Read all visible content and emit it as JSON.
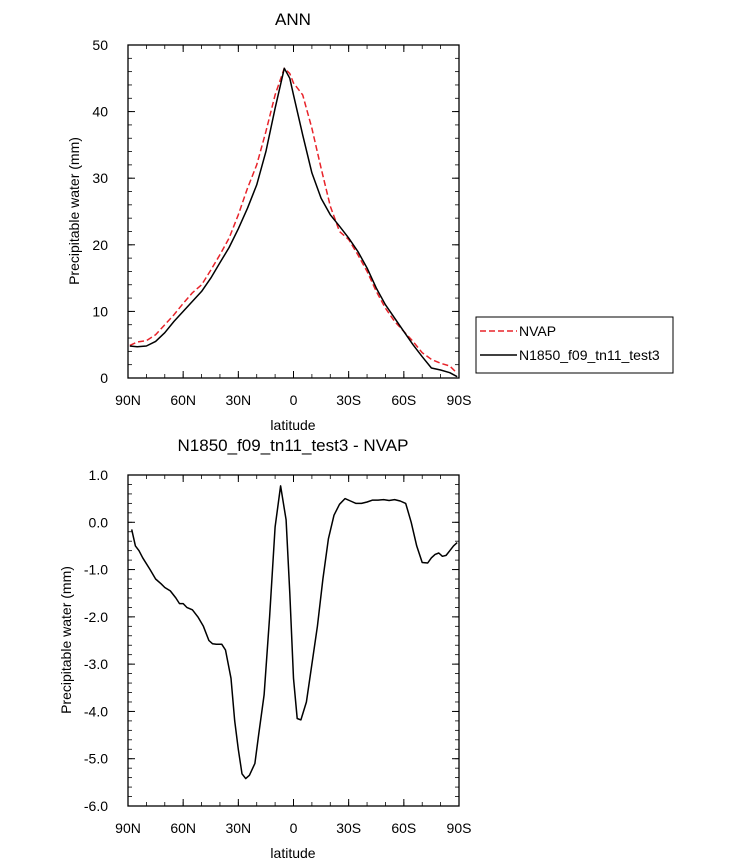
{
  "chart_data": [
    {
      "type": "line",
      "title": "ANN",
      "xlabel": "latitude",
      "ylabel": "Precipitable water (mm)",
      "xlim": [
        90,
        -90
      ],
      "ylim": [
        0,
        50
      ],
      "x_ticks": [
        90,
        60,
        30,
        0,
        -30,
        -60,
        -90
      ],
      "x_tick_labels": [
        "90N",
        "60N",
        "30N",
        "0",
        "30S",
        "60S",
        "90S"
      ],
      "y_ticks": [
        0,
        10,
        20,
        30,
        40,
        50
      ],
      "y_tick_labels": [
        "0",
        "10",
        "20",
        "30",
        "40",
        "50"
      ],
      "legend": {
        "placement": "right",
        "entries": [
          "NVAP",
          "N1850_f09_tn11_test3"
        ]
      },
      "series": [
        {
          "name": "NVAP",
          "color": "#e8232a",
          "dash": "dashed",
          "x": [
            89,
            85,
            80,
            75,
            70,
            65,
            60,
            55,
            50,
            45,
            40,
            35,
            30,
            25,
            20,
            15,
            10,
            5,
            2,
            0,
            -5,
            -10,
            -15,
            -20,
            -25,
            -30,
            -35,
            -40,
            -45,
            -50,
            -55,
            -60,
            -65,
            -70,
            -75,
            -80,
            -85,
            -89
          ],
          "values": [
            4.9,
            5.4,
            5.6,
            6.5,
            8.0,
            9.5,
            11.2,
            12.8,
            14.0,
            16.2,
            18.5,
            21.0,
            24.5,
            28.5,
            32.0,
            37.0,
            42.5,
            46.5,
            45.7,
            44.3,
            42.5,
            37.5,
            31.5,
            25.8,
            22.0,
            20.8,
            18.5,
            16.0,
            13.0,
            10.5,
            8.5,
            7.0,
            5.5,
            3.8,
            2.8,
            2.2,
            1.8,
            0.7
          ]
        },
        {
          "name": "N1850_f09_tn11_test3",
          "color": "#000000",
          "dash": "solid",
          "x": [
            89,
            85,
            80,
            75,
            70,
            65,
            60,
            55,
            50,
            45,
            40,
            35,
            30,
            25,
            20,
            15,
            10,
            5,
            2,
            0,
            -5,
            -10,
            -15,
            -20,
            -25,
            -30,
            -35,
            -40,
            -45,
            -50,
            -55,
            -60,
            -65,
            -70,
            -75,
            -80,
            -85,
            -89
          ],
          "values": [
            4.8,
            4.7,
            4.8,
            5.5,
            6.8,
            8.5,
            10.0,
            11.5,
            13.0,
            15.0,
            17.3,
            19.6,
            22.4,
            25.5,
            29.0,
            34.0,
            40.5,
            46.5,
            45.0,
            42.5,
            36.5,
            30.8,
            27.0,
            24.5,
            22.8,
            21.0,
            19.0,
            16.5,
            13.5,
            11.0,
            9.0,
            7.0,
            5.0,
            3.2,
            1.5,
            1.2,
            0.8,
            0.2
          ]
        }
      ]
    },
    {
      "type": "line",
      "title": "N1850_f09_tn11_test3 - NVAP",
      "xlabel": "latitude",
      "ylabel": "Precipitable water (mm)",
      "xlim": [
        90,
        -90
      ],
      "ylim": [
        -6,
        1
      ],
      "x_ticks": [
        90,
        60,
        30,
        0,
        -30,
        -60,
        -90
      ],
      "x_tick_labels": [
        "90N",
        "60N",
        "30N",
        "0",
        "30S",
        "60S",
        "90S"
      ],
      "y_ticks": [
        1,
        0,
        -1,
        -2,
        -3,
        -4,
        -5,
        -6
      ],
      "y_tick_labels": [
        "1.0",
        "0.0",
        "-1.0",
        "-2.0",
        "-3.0",
        "-4.0",
        "-5.0",
        "-6.0"
      ],
      "series": [
        {
          "name": "N1850_f09_tn11_test3 - NVAP",
          "color": "#000000",
          "dash": "solid",
          "x": [
            88,
            86,
            84,
            82,
            78,
            75,
            72,
            70,
            67,
            64,
            62,
            60,
            58,
            55,
            52,
            49,
            46,
            44,
            42,
            39,
            37,
            34,
            32,
            30,
            28,
            26,
            24,
            21,
            19,
            16,
            13,
            10,
            7,
            4,
            2,
            0,
            -2,
            -4,
            -7,
            -10,
            -13,
            -16,
            -19,
            -22,
            -25,
            -28,
            -31,
            -34,
            -37,
            -40,
            -43,
            -46,
            -49,
            -52,
            -55,
            -58,
            -61,
            -64,
            -67,
            -70,
            -73,
            -75,
            -77,
            -79,
            -81,
            -83,
            -85,
            -87,
            -89
          ],
          "values": [
            -0.15,
            -0.5,
            -0.6,
            -0.75,
            -1.0,
            -1.2,
            -1.3,
            -1.38,
            -1.45,
            -1.6,
            -1.72,
            -1.72,
            -1.8,
            -1.85,
            -2.0,
            -2.2,
            -2.5,
            -2.57,
            -2.58,
            -2.58,
            -2.7,
            -3.3,
            -4.2,
            -4.8,
            -5.32,
            -5.42,
            -5.35,
            -5.1,
            -4.5,
            -3.65,
            -2.0,
            -0.1,
            0.77,
            0.05,
            -1.5,
            -3.3,
            -4.15,
            -4.18,
            -3.8,
            -3.0,
            -2.2,
            -1.2,
            -0.35,
            0.15,
            0.38,
            0.5,
            0.45,
            0.4,
            0.4,
            0.43,
            0.47,
            0.47,
            0.48,
            0.46,
            0.48,
            0.45,
            0.4,
            0.0,
            -0.5,
            -0.85,
            -0.86,
            -0.75,
            -0.68,
            -0.65,
            -0.72,
            -0.7,
            -0.6,
            -0.5,
            -0.43
          ]
        }
      ]
    }
  ]
}
